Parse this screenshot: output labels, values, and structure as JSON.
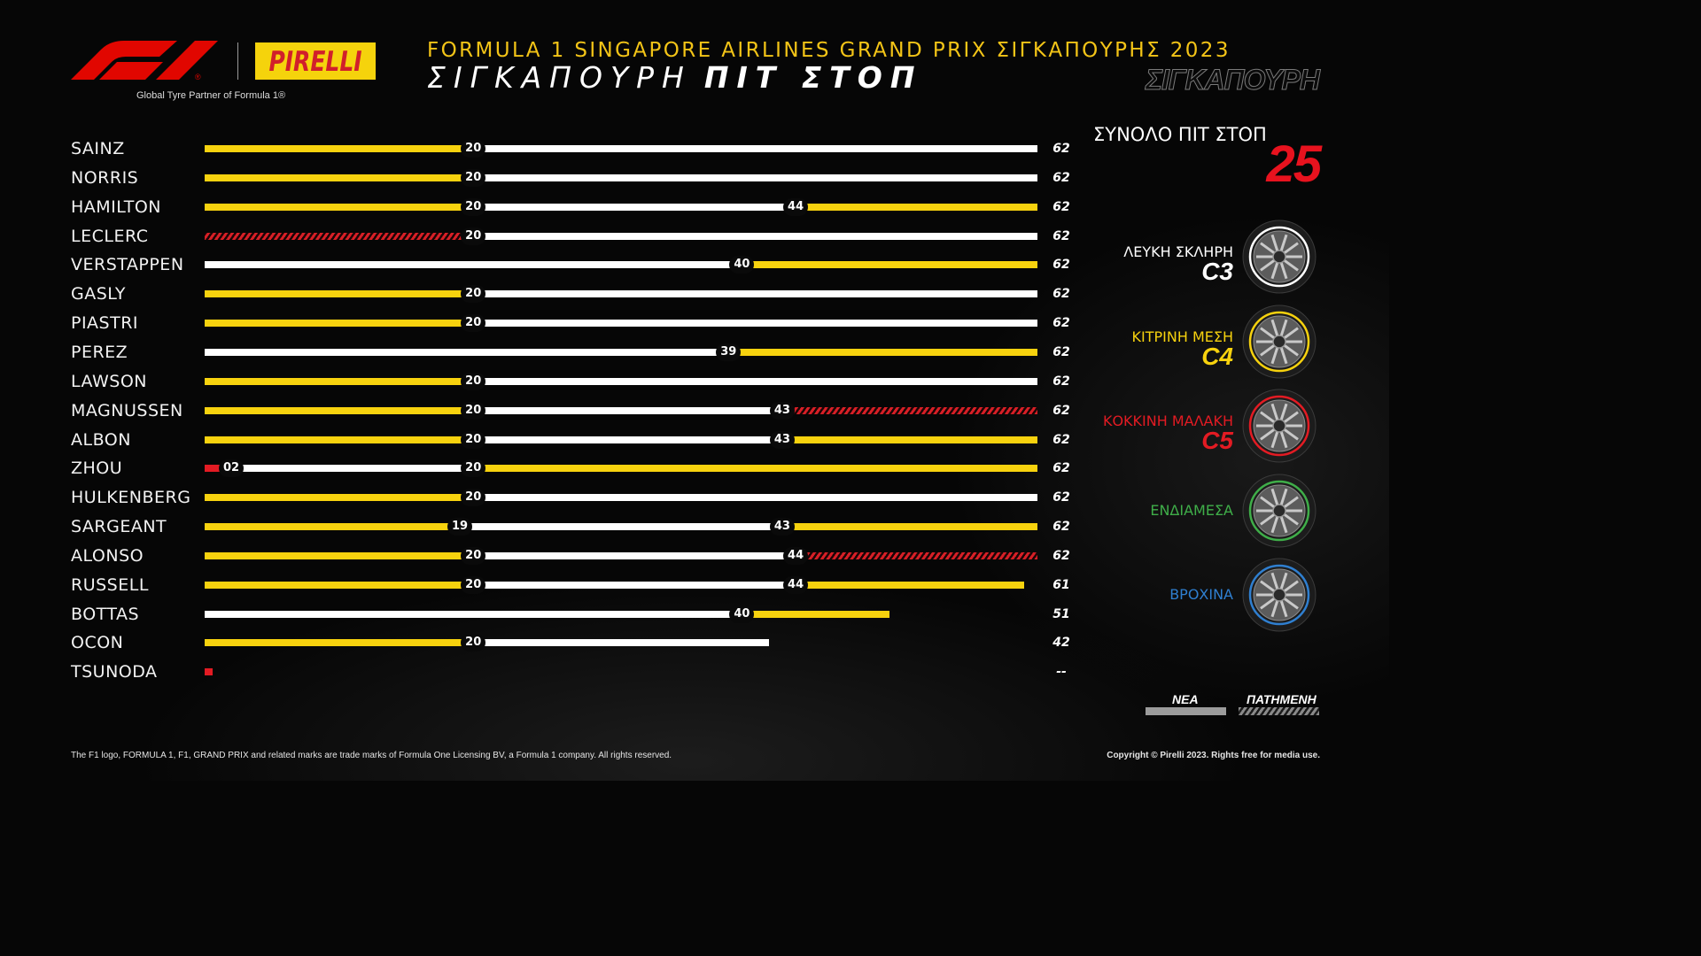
{
  "header": {
    "brand_f1": "F1",
    "brand_pirelli": "PIRELLI",
    "tagline": "Global Tyre Partner of Formula 1®",
    "event_title": "FORMULA 1 SINGAPORE AIRLINES GRAND PRIX ΣΙΓΚΑΠΟΥΡΗΣ 2023",
    "page_title_light": "ΣΙΓΚΑΠΟΥΡΗ",
    "page_title_bold": "ΠΙΤ ΣΤΟΠ",
    "watermark": "ΣΙΓΚΑΠΟΥΡΗ"
  },
  "summary": {
    "total_label": "ΣΥΝΟΛΟ ΠΙΤ ΣΤΟΠ",
    "total_value": "25"
  },
  "compounds": [
    {
      "key": "hard",
      "name": "ΛΕΥΚΗ ΣΚΛΗΡΗ",
      "code": "C3",
      "color": "#ffffff"
    },
    {
      "key": "medium",
      "name": "ΚΙΤΡΙΝΗ ΜΕΣΗ",
      "code": "C4",
      "color": "#f7d20e"
    },
    {
      "key": "soft",
      "name": "ΚΟΚΚΙΝΗ ΜΑΛΑΚΗ",
      "code": "C5",
      "color": "#e31b23"
    },
    {
      "key": "intermediate",
      "name": "ΕΝΔΙΑΜΕΣΑ",
      "code": "",
      "color": "#3fae49"
    },
    {
      "key": "wet",
      "name": "ΒΡΟΧΙΝΑ",
      "code": "",
      "color": "#2f7fd0"
    }
  ],
  "legend": {
    "new_label": "ΝΕΑ",
    "used_label": "ΠΑΤΗΜΕΝΗ"
  },
  "footer": {
    "left": "The F1 logo, FORMULA 1, F1, GRAND PRIX and related marks are trade marks of Formula One Licensing BV, a Formula 1 company. All rights reserved.",
    "right": "Copyright © Pirelli 2023. Rights free for media use."
  },
  "chart_data": {
    "type": "bar",
    "race_laps": 62,
    "x_range": [
      0,
      62
    ],
    "drivers": [
      {
        "name": "SAINZ",
        "end_label": "62",
        "stints": [
          {
            "compound": "medium",
            "condition": "new",
            "start": 0,
            "end": 20
          },
          {
            "compound": "hard",
            "condition": "new",
            "start": 20,
            "end": 62
          }
        ],
        "stop_labels": [
          "20"
        ]
      },
      {
        "name": "NORRIS",
        "end_label": "62",
        "stints": [
          {
            "compound": "medium",
            "condition": "new",
            "start": 0,
            "end": 20
          },
          {
            "compound": "hard",
            "condition": "new",
            "start": 20,
            "end": 62
          }
        ],
        "stop_labels": [
          "20"
        ]
      },
      {
        "name": "HAMILTON",
        "end_label": "62",
        "stints": [
          {
            "compound": "medium",
            "condition": "new",
            "start": 0,
            "end": 20
          },
          {
            "compound": "hard",
            "condition": "new",
            "start": 20,
            "end": 44
          },
          {
            "compound": "medium",
            "condition": "new",
            "start": 44,
            "end": 62
          }
        ],
        "stop_labels": [
          "20",
          "44"
        ]
      },
      {
        "name": "LECLERC",
        "end_label": "62",
        "stints": [
          {
            "compound": "soft",
            "condition": "used",
            "start": 0,
            "end": 20
          },
          {
            "compound": "hard",
            "condition": "new",
            "start": 20,
            "end": 62
          }
        ],
        "stop_labels": [
          "20"
        ]
      },
      {
        "name": "VERSTAPPEN",
        "end_label": "62",
        "stints": [
          {
            "compound": "hard",
            "condition": "new",
            "start": 0,
            "end": 40
          },
          {
            "compound": "medium",
            "condition": "new",
            "start": 40,
            "end": 62
          }
        ],
        "stop_labels": [
          "40"
        ]
      },
      {
        "name": "GASLY",
        "end_label": "62",
        "stints": [
          {
            "compound": "medium",
            "condition": "new",
            "start": 0,
            "end": 20
          },
          {
            "compound": "hard",
            "condition": "new",
            "start": 20,
            "end": 62
          }
        ],
        "stop_labels": [
          "20"
        ]
      },
      {
        "name": "PIASTRI",
        "end_label": "62",
        "stints": [
          {
            "compound": "medium",
            "condition": "new",
            "start": 0,
            "end": 20
          },
          {
            "compound": "hard",
            "condition": "new",
            "start": 20,
            "end": 62
          }
        ],
        "stop_labels": [
          "20"
        ]
      },
      {
        "name": "PEREZ",
        "end_label": "62",
        "stints": [
          {
            "compound": "hard",
            "condition": "new",
            "start": 0,
            "end": 39
          },
          {
            "compound": "medium",
            "condition": "new",
            "start": 39,
            "end": 62
          }
        ],
        "stop_labels": [
          "39"
        ]
      },
      {
        "name": "LAWSON",
        "end_label": "62",
        "stints": [
          {
            "compound": "medium",
            "condition": "new",
            "start": 0,
            "end": 20
          },
          {
            "compound": "hard",
            "condition": "new",
            "start": 20,
            "end": 62
          }
        ],
        "stop_labels": [
          "20"
        ]
      },
      {
        "name": "MAGNUSSEN",
        "end_label": "62",
        "stints": [
          {
            "compound": "medium",
            "condition": "new",
            "start": 0,
            "end": 20
          },
          {
            "compound": "hard",
            "condition": "new",
            "start": 20,
            "end": 43
          },
          {
            "compound": "soft",
            "condition": "used",
            "start": 43,
            "end": 62
          }
        ],
        "stop_labels": [
          "20",
          "43"
        ]
      },
      {
        "name": "ALBON",
        "end_label": "62",
        "stints": [
          {
            "compound": "medium",
            "condition": "new",
            "start": 0,
            "end": 20
          },
          {
            "compound": "hard",
            "condition": "new",
            "start": 20,
            "end": 43
          },
          {
            "compound": "medium",
            "condition": "new",
            "start": 43,
            "end": 62
          }
        ],
        "stop_labels": [
          "20",
          "43"
        ]
      },
      {
        "name": "ZHOU",
        "end_label": "62",
        "stints": [
          {
            "compound": "soft",
            "condition": "new",
            "start": 0,
            "end": 2
          },
          {
            "compound": "hard",
            "condition": "new",
            "start": 2,
            "end": 20
          },
          {
            "compound": "medium",
            "condition": "new",
            "start": 20,
            "end": 62
          }
        ],
        "stop_labels": [
          "02",
          "20"
        ]
      },
      {
        "name": "HULKENBERG",
        "end_label": "62",
        "stints": [
          {
            "compound": "medium",
            "condition": "new",
            "start": 0,
            "end": 20
          },
          {
            "compound": "hard",
            "condition": "new",
            "start": 20,
            "end": 62
          }
        ],
        "stop_labels": [
          "20"
        ]
      },
      {
        "name": "SARGEANT",
        "end_label": "62",
        "stints": [
          {
            "compound": "medium",
            "condition": "new",
            "start": 0,
            "end": 19
          },
          {
            "compound": "hard",
            "condition": "new",
            "start": 19,
            "end": 43
          },
          {
            "compound": "medium",
            "condition": "new",
            "start": 43,
            "end": 62
          }
        ],
        "stop_labels": [
          "19",
          "43"
        ]
      },
      {
        "name": "ALONSO",
        "end_label": "62",
        "stints": [
          {
            "compound": "medium",
            "condition": "new",
            "start": 0,
            "end": 20
          },
          {
            "compound": "hard",
            "condition": "new",
            "start": 20,
            "end": 44
          },
          {
            "compound": "soft",
            "condition": "used",
            "start": 44,
            "end": 62
          }
        ],
        "stop_labels": [
          "20",
          "44"
        ]
      },
      {
        "name": "RUSSELL",
        "end_label": "61",
        "stints": [
          {
            "compound": "medium",
            "condition": "new",
            "start": 0,
            "end": 20
          },
          {
            "compound": "hard",
            "condition": "new",
            "start": 20,
            "end": 44
          },
          {
            "compound": "medium",
            "condition": "new",
            "start": 44,
            "end": 61
          }
        ],
        "stop_labels": [
          "20",
          "44"
        ]
      },
      {
        "name": "BOTTAS",
        "end_label": "51",
        "stints": [
          {
            "compound": "hard",
            "condition": "new",
            "start": 0,
            "end": 40
          },
          {
            "compound": "medium",
            "condition": "new",
            "start": 40,
            "end": 51
          }
        ],
        "stop_labels": [
          "40"
        ]
      },
      {
        "name": "OCON",
        "end_label": "42",
        "stints": [
          {
            "compound": "medium",
            "condition": "new",
            "start": 0,
            "end": 20
          },
          {
            "compound": "hard",
            "condition": "new",
            "start": 20,
            "end": 42
          }
        ],
        "stop_labels": [
          "20"
        ]
      },
      {
        "name": "TSUNODA",
        "end_label": "--",
        "stints": [
          {
            "compound": "soft",
            "condition": "new",
            "start": 0,
            "end": 0.5
          }
        ],
        "stop_labels": []
      }
    ]
  }
}
